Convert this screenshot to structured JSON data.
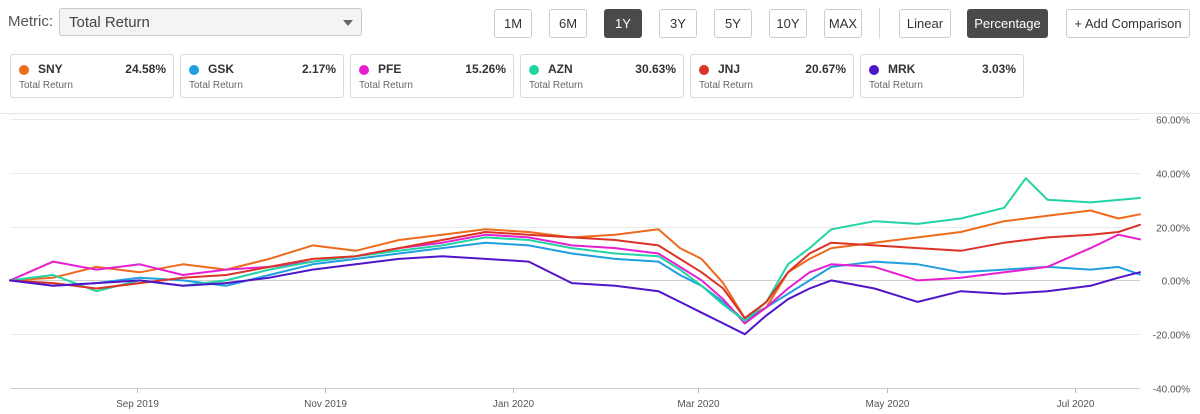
{
  "toolbar": {
    "metric_label": "Metric:",
    "metric_value": "Total Return",
    "ranges": [
      "1M",
      "6M",
      "1Y",
      "3Y",
      "5Y",
      "10Y",
      "MAX"
    ],
    "active_range": "1Y",
    "scale_linear": "Linear",
    "scale_percentage": "Percentage",
    "active_scale": "Percentage",
    "add_comparison": "+ Add Comparison"
  },
  "tickers": [
    {
      "symbol": "SNY",
      "value": "24.58%",
      "sub": "Total Return",
      "color": "#ee6a1c"
    },
    {
      "symbol": "GSK",
      "value": "2.17%",
      "sub": "Total Return",
      "color": "#1f9fe0"
    },
    {
      "symbol": "PFE",
      "value": "15.26%",
      "sub": "Total Return",
      "color": "#e61fd0"
    },
    {
      "symbol": "AZN",
      "value": "30.63%",
      "sub": "Total Return",
      "color": "#22d3a4"
    },
    {
      "symbol": "JNJ",
      "value": "20.67%",
      "sub": "Total Return",
      "color": "#db3326"
    },
    {
      "symbol": "MRK",
      "value": "3.03%",
      "sub": "Total Return",
      "color": "#4f15c9"
    }
  ],
  "chart_data": {
    "type": "line",
    "x_tick_labels": [
      "Sep 2019",
      "Nov 2019",
      "Jan 2020",
      "Mar 2020",
      "May 2020",
      "Jul 2020"
    ],
    "x_tick_dates": [
      "2019-09-01",
      "2019-11-01",
      "2020-01-01",
      "2020-03-01",
      "2020-05-01",
      "2020-07-01"
    ],
    "x_range": [
      "2019-07-22",
      "2020-07-22"
    ],
    "y_range": [
      -40,
      60
    ],
    "y_ticks": [
      {
        "value": 60,
        "label": "60.00%"
      },
      {
        "value": 40,
        "label": "40.00%"
      },
      {
        "value": 20,
        "label": "20.00%"
      },
      {
        "value": 0,
        "label": "0.00%"
      },
      {
        "value": -20,
        "label": "-20.00%"
      },
      {
        "value": -40,
        "label": "-40.00%"
      }
    ],
    "grid": true,
    "series": [
      {
        "name": "SNY",
        "color": "#ee6a1c",
        "points": [
          [
            "2019-07-22",
            0
          ],
          [
            "2019-08-05",
            1
          ],
          [
            "2019-08-19",
            5
          ],
          [
            "2019-09-02",
            3
          ],
          [
            "2019-09-16",
            6
          ],
          [
            "2019-09-30",
            4
          ],
          [
            "2019-10-14",
            8
          ],
          [
            "2019-10-28",
            13
          ],
          [
            "2019-11-11",
            11
          ],
          [
            "2019-11-25",
            15
          ],
          [
            "2019-12-09",
            17
          ],
          [
            "2019-12-23",
            19
          ],
          [
            "2020-01-06",
            18
          ],
          [
            "2020-01-20",
            16
          ],
          [
            "2020-02-03",
            17
          ],
          [
            "2020-02-17",
            19
          ],
          [
            "2020-02-24",
            12
          ],
          [
            "2020-03-02",
            8
          ],
          [
            "2020-03-09",
            -1
          ],
          [
            "2020-03-16",
            -14
          ],
          [
            "2020-03-23",
            -10
          ],
          [
            "2020-03-30",
            3
          ],
          [
            "2020-04-06",
            8
          ],
          [
            "2020-04-13",
            12
          ],
          [
            "2020-04-27",
            14
          ],
          [
            "2020-05-11",
            16
          ],
          [
            "2020-05-25",
            18
          ],
          [
            "2020-06-08",
            22
          ],
          [
            "2020-06-22",
            24
          ],
          [
            "2020-07-06",
            26
          ],
          [
            "2020-07-15",
            23
          ],
          [
            "2020-07-22",
            24.58
          ]
        ]
      },
      {
        "name": "GSK",
        "color": "#1f9fe0",
        "points": [
          [
            "2019-07-22",
            0
          ],
          [
            "2019-08-05",
            -2
          ],
          [
            "2019-08-19",
            -1
          ],
          [
            "2019-09-02",
            1
          ],
          [
            "2019-09-16",
            0
          ],
          [
            "2019-09-30",
            -2
          ],
          [
            "2019-10-14",
            2
          ],
          [
            "2019-10-28",
            6
          ],
          [
            "2019-11-11",
            8
          ],
          [
            "2019-11-25",
            10
          ],
          [
            "2019-12-09",
            12
          ],
          [
            "2019-12-23",
            14
          ],
          [
            "2020-01-06",
            13
          ],
          [
            "2020-01-20",
            10
          ],
          [
            "2020-02-03",
            8
          ],
          [
            "2020-02-17",
            7
          ],
          [
            "2020-02-24",
            2
          ],
          [
            "2020-03-02",
            -2
          ],
          [
            "2020-03-09",
            -8
          ],
          [
            "2020-03-16",
            -15
          ],
          [
            "2020-03-23",
            -10
          ],
          [
            "2020-03-30",
            -5
          ],
          [
            "2020-04-06",
            0
          ],
          [
            "2020-04-13",
            5
          ],
          [
            "2020-04-27",
            7
          ],
          [
            "2020-05-11",
            6
          ],
          [
            "2020-05-25",
            3
          ],
          [
            "2020-06-08",
            4
          ],
          [
            "2020-06-22",
            5
          ],
          [
            "2020-07-06",
            4
          ],
          [
            "2020-07-15",
            5
          ],
          [
            "2020-07-22",
            2.17
          ]
        ]
      },
      {
        "name": "PFE",
        "color": "#e61fd0",
        "points": [
          [
            "2019-07-22",
            0
          ],
          [
            "2019-08-05",
            7
          ],
          [
            "2019-08-19",
            4
          ],
          [
            "2019-09-02",
            6
          ],
          [
            "2019-09-16",
            2
          ],
          [
            "2019-09-30",
            4
          ],
          [
            "2019-10-14",
            5
          ],
          [
            "2019-10-28",
            7
          ],
          [
            "2019-11-11",
            9
          ],
          [
            "2019-11-25",
            12
          ],
          [
            "2019-12-09",
            14
          ],
          [
            "2019-12-23",
            17
          ],
          [
            "2020-01-06",
            16
          ],
          [
            "2020-01-20",
            13
          ],
          [
            "2020-02-03",
            12
          ],
          [
            "2020-02-17",
            10
          ],
          [
            "2020-02-24",
            5
          ],
          [
            "2020-03-02",
            0
          ],
          [
            "2020-03-09",
            -7
          ],
          [
            "2020-03-16",
            -16
          ],
          [
            "2020-03-23",
            -10
          ],
          [
            "2020-03-30",
            -3
          ],
          [
            "2020-04-06",
            3
          ],
          [
            "2020-04-13",
            6
          ],
          [
            "2020-04-27",
            5
          ],
          [
            "2020-05-11",
            0
          ],
          [
            "2020-05-25",
            1
          ],
          [
            "2020-06-08",
            3
          ],
          [
            "2020-06-22",
            5
          ],
          [
            "2020-07-06",
            12
          ],
          [
            "2020-07-15",
            17
          ],
          [
            "2020-07-22",
            15.26
          ]
        ]
      },
      {
        "name": "AZN",
        "color": "#22d3a4",
        "points": [
          [
            "2019-07-22",
            0
          ],
          [
            "2019-08-05",
            2
          ],
          [
            "2019-08-19",
            -4
          ],
          [
            "2019-09-02",
            0
          ],
          [
            "2019-09-16",
            -2
          ],
          [
            "2019-09-30",
            0
          ],
          [
            "2019-10-14",
            4
          ],
          [
            "2019-10-28",
            7
          ],
          [
            "2019-11-11",
            9
          ],
          [
            "2019-11-25",
            11
          ],
          [
            "2019-12-09",
            13
          ],
          [
            "2019-12-23",
            16
          ],
          [
            "2020-01-06",
            15
          ],
          [
            "2020-01-20",
            12
          ],
          [
            "2020-02-03",
            10
          ],
          [
            "2020-02-17",
            9
          ],
          [
            "2020-02-24",
            4
          ],
          [
            "2020-03-02",
            -2
          ],
          [
            "2020-03-09",
            -9
          ],
          [
            "2020-03-16",
            -15
          ],
          [
            "2020-03-23",
            -8
          ],
          [
            "2020-03-30",
            6
          ],
          [
            "2020-04-06",
            12
          ],
          [
            "2020-04-13",
            19
          ],
          [
            "2020-04-27",
            22
          ],
          [
            "2020-05-11",
            21
          ],
          [
            "2020-05-25",
            23
          ],
          [
            "2020-06-08",
            27
          ],
          [
            "2020-06-15",
            38
          ],
          [
            "2020-06-22",
            30
          ],
          [
            "2020-07-06",
            29
          ],
          [
            "2020-07-22",
            30.63
          ]
        ]
      },
      {
        "name": "JNJ",
        "color": "#db3326",
        "points": [
          [
            "2019-07-22",
            0
          ],
          [
            "2019-08-05",
            -1
          ],
          [
            "2019-08-19",
            -3
          ],
          [
            "2019-09-02",
            -1
          ],
          [
            "2019-09-16",
            1
          ],
          [
            "2019-09-30",
            2
          ],
          [
            "2019-10-14",
            5
          ],
          [
            "2019-10-28",
            8
          ],
          [
            "2019-11-11",
            9
          ],
          [
            "2019-11-25",
            12
          ],
          [
            "2019-12-09",
            15
          ],
          [
            "2019-12-23",
            18
          ],
          [
            "2020-01-06",
            17
          ],
          [
            "2020-01-20",
            16
          ],
          [
            "2020-02-03",
            15
          ],
          [
            "2020-02-17",
            13
          ],
          [
            "2020-02-24",
            8
          ],
          [
            "2020-03-02",
            3
          ],
          [
            "2020-03-09",
            -3
          ],
          [
            "2020-03-16",
            -14
          ],
          [
            "2020-03-23",
            -8
          ],
          [
            "2020-03-30",
            3
          ],
          [
            "2020-04-06",
            10
          ],
          [
            "2020-04-13",
            14
          ],
          [
            "2020-04-27",
            13
          ],
          [
            "2020-05-11",
            12
          ],
          [
            "2020-05-25",
            11
          ],
          [
            "2020-06-08",
            14
          ],
          [
            "2020-06-22",
            16
          ],
          [
            "2020-07-06",
            17
          ],
          [
            "2020-07-15",
            18
          ],
          [
            "2020-07-22",
            20.67
          ]
        ]
      },
      {
        "name": "MRK",
        "color": "#4f15c9",
        "points": [
          [
            "2019-07-22",
            0
          ],
          [
            "2019-08-05",
            -2
          ],
          [
            "2019-08-19",
            -1
          ],
          [
            "2019-09-02",
            0
          ],
          [
            "2019-09-16",
            -2
          ],
          [
            "2019-09-30",
            -1
          ],
          [
            "2019-10-14",
            1
          ],
          [
            "2019-10-28",
            4
          ],
          [
            "2019-11-11",
            6
          ],
          [
            "2019-11-25",
            8
          ],
          [
            "2019-12-09",
            9
          ],
          [
            "2019-12-23",
            8
          ],
          [
            "2020-01-06",
            7
          ],
          [
            "2020-01-20",
            -1
          ],
          [
            "2020-02-03",
            -2
          ],
          [
            "2020-02-17",
            -4
          ],
          [
            "2020-02-24",
            -8
          ],
          [
            "2020-03-02",
            -12
          ],
          [
            "2020-03-09",
            -16
          ],
          [
            "2020-03-16",
            -20
          ],
          [
            "2020-03-23",
            -13
          ],
          [
            "2020-03-30",
            -7
          ],
          [
            "2020-04-06",
            -3
          ],
          [
            "2020-04-13",
            0
          ],
          [
            "2020-04-27",
            -3
          ],
          [
            "2020-05-11",
            -8
          ],
          [
            "2020-05-25",
            -4
          ],
          [
            "2020-06-08",
            -5
          ],
          [
            "2020-06-22",
            -4
          ],
          [
            "2020-07-06",
            -2
          ],
          [
            "2020-07-15",
            1
          ],
          [
            "2020-07-22",
            3.03
          ]
        ]
      }
    ]
  }
}
